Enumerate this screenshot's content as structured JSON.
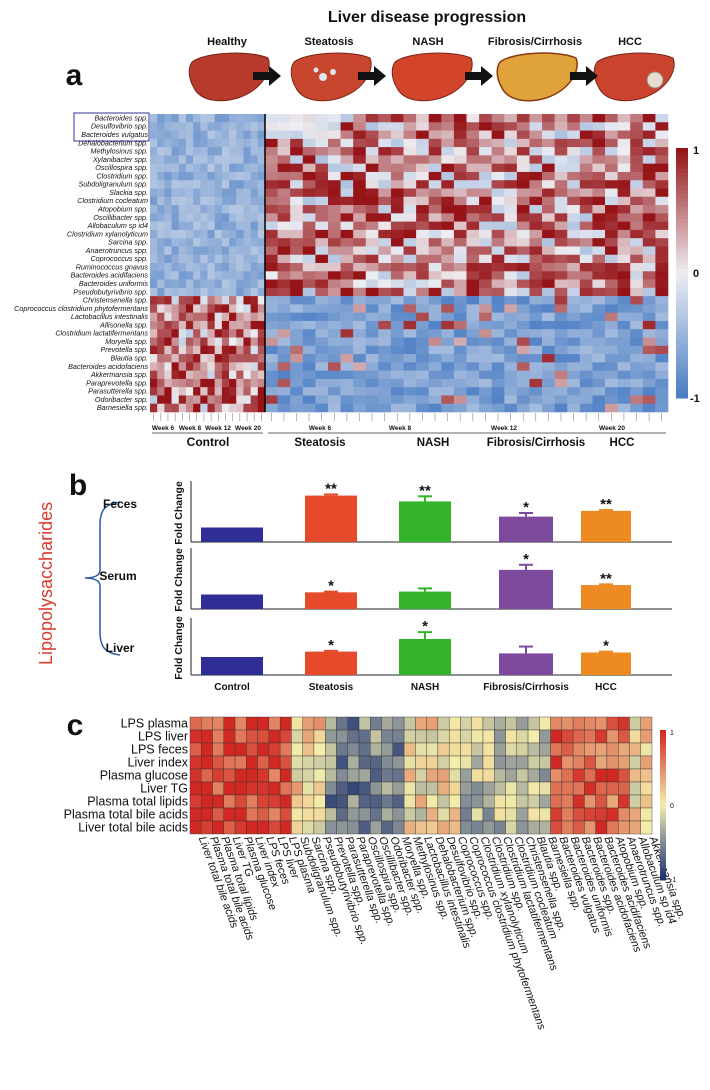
{
  "figure": {
    "title": "Liver disease progression",
    "panel_labels": [
      "a",
      "b",
      "c"
    ],
    "stages": [
      "Healthy",
      "Steatosis",
      "NASH",
      "Fibrosis/Cirrhosis",
      "HCC"
    ],
    "stage_colors": [
      "#b83a2c",
      "#c8452e",
      "#d2452a",
      "#e0a23a",
      "#c9432e"
    ]
  },
  "chart_data": [
    {
      "id": "panel_a",
      "type": "heatmap",
      "title": "",
      "colorbar": {
        "max_label": "1",
        "mid_label": "0",
        "min_label": "-1",
        "range": [
          -1,
          1
        ]
      },
      "rows": [
        "Bacteroides spp.",
        "Desulfovibrio spp.",
        "Bacteroides vulgatus",
        "Dehalobacterium spp.",
        "Methylosinus spp.",
        "Xylanibacter spp.",
        "Oscillospira spp.",
        "Clostridium spp.",
        "Subdoligranulum spp.",
        "Slackia spp.",
        "Clostridium cocleatum",
        "Atopobium spp.",
        "Oscillibacter spp.",
        "Allobaculum sp id4",
        "Clostridium xylanolyticum",
        "Sarcina spp.",
        "Anaerotruncus spp.",
        "Coprococcus spp.",
        "Ruminococcus gnavus",
        "Bacteroides acidifaciens",
        "Bacteroides uniformis",
        "Pseudobutyrivibrio spp.",
        "Christensenella spp.",
        "Coprococcus clostridium phytofermentans",
        "Lactobacillus intestinalis",
        "Allisonella spp.",
        "Clostridium lactatifermentans",
        "Moryella spp.",
        "Prevotella spp.",
        "Blautia spp.",
        "Bacteroides acidofaciens",
        "Akkermansia spp.",
        "Paraprevotella spp.",
        "Parasutterella spp.",
        "Odoribacter spp.",
        "Barnesiella spp."
      ],
      "boxed_rows": [
        "Bacteroides spp.",
        "Desulfovibrio spp.",
        "Bacteroides vulgatus"
      ],
      "control_weeks": [
        "Week 6",
        "Week 8",
        "Week 12",
        "Week 20"
      ],
      "disease_weeks": [
        "Week 6",
        "Week 8",
        "Week 12",
        "Week 20"
      ],
      "groups": [
        "Control",
        "Steatosis",
        "NASH",
        "Fibrosis/Cirrhosis",
        "HCC"
      ],
      "control_columns": 16,
      "disease_columns": 32,
      "pattern": "Control columns high for the bottom rows (Christensenella ... Barnesiella) and low for top rows; disease columns high for top rows and low for bottom rows"
    },
    {
      "id": "panel_b_feces",
      "type": "bar",
      "group_label": "Lipopolysaccharides",
      "row_label": "Feces",
      "ylabel": "Fold Change",
      "categories": [
        "Control",
        "Steatosis",
        "NASH",
        "Fibrosis/Cirrhosis",
        "HCC"
      ],
      "values": [
        1.0,
        3.2,
        2.8,
        1.75,
        2.15
      ],
      "errors": [
        0.0,
        0.08,
        0.35,
        0.25,
        0.06
      ],
      "significance": [
        "",
        "**",
        "**",
        "*",
        "**"
      ],
      "ylim": [
        0,
        4
      ]
    },
    {
      "id": "panel_b_serum",
      "type": "bar",
      "row_label": "Serum",
      "ylabel": "Fold Change",
      "categories": [
        "Control",
        "Steatosis",
        "NASH",
        "Fibrosis/Cirrhosis",
        "HCC"
      ],
      "values": [
        1.0,
        1.15,
        1.2,
        2.7,
        1.65
      ],
      "errors": [
        0.0,
        0.05,
        0.22,
        0.35,
        0.05
      ],
      "significance": [
        "",
        "*",
        "",
        "*",
        "**"
      ],
      "ylim": [
        0,
        4
      ]
    },
    {
      "id": "panel_b_liver",
      "type": "bar",
      "row_label": "Liver",
      "ylabel": "Fold Change",
      "categories": [
        "Control",
        "Steatosis",
        "NASH",
        "Fibrosis/Cirrhosis",
        "HCC"
      ],
      "values": [
        1.0,
        1.3,
        2.0,
        1.2,
        1.25
      ],
      "errors": [
        0.0,
        0.04,
        0.38,
        0.38,
        0.05
      ],
      "significance": [
        "",
        "*",
        "*",
        "",
        "*"
      ],
      "ylim": [
        0,
        3
      ]
    },
    {
      "id": "panel_c",
      "type": "heatmap",
      "colorbar": {
        "max_label": "1",
        "mid_label": "0",
        "min_label": "-1",
        "range": [
          -1,
          1
        ]
      },
      "rows": [
        "LPS plasma",
        "LPS liver",
        "LPS feces",
        "Liver index",
        "Plasma glucose",
        "Liver TG",
        "Plasma total lipids",
        "Plasma total bile acids",
        "Liver total bile acids"
      ],
      "columns": [
        "Liver total bile acids",
        "Plasma total bile acids",
        "Plasma total lipids",
        "Liver TG",
        "Plasma glucose",
        "Liver index",
        "LPS feces",
        "LPS liver",
        "LPS plasma",
        "Subdoligranulum spp.",
        "Sarcina spp.",
        "Pseudobutyrivibrio spp.",
        "Prevotella spp.",
        "Parasutterella spp.",
        "Paraprevotella spp.",
        "Oscillospira spp.",
        "Oscillibacter spp.",
        "Odoribacter spp.",
        "Moryella spp.",
        "Methylosinus spp.",
        "Lactobacillus intestinalis",
        "Dehalobacterium spp.",
        "Desulfovibrio spp.",
        "Coprococcus spp.",
        "Coprococcus clostridium phytofermentans",
        "Clostridium xylanolyticum",
        "Clostridium spp.",
        "Clostridium lactatifermentans",
        "Clostridium cocleatum",
        "Christensenella spp.",
        "Blautia spp.",
        "Barnesiella spp.",
        "Bacteroides vulgatus",
        "Bacteroides uniformis",
        "Bacteroides spp.",
        "Bacteroides acidofaciens",
        "Bacteroides acidifaciens",
        "Atopobium spp.",
        "Anaerotruncus spp.",
        "Allobaculum sp id4",
        "Akkermansia spp."
      ]
    }
  ]
}
